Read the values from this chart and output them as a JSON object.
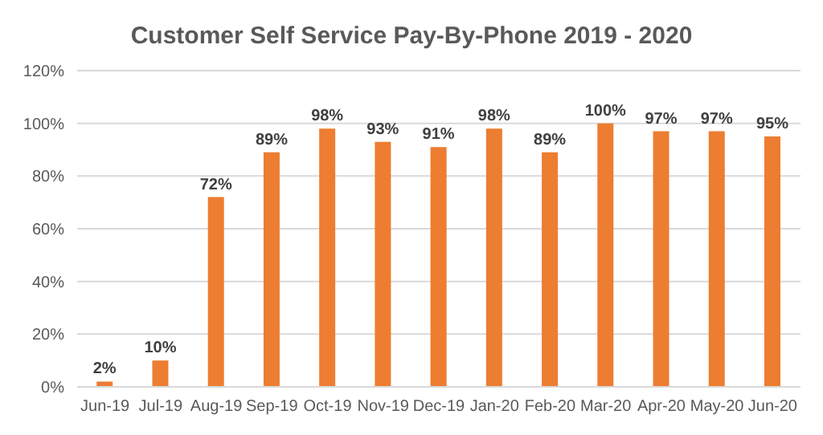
{
  "chart_data": {
    "type": "bar",
    "title": "Customer Self Service Pay-By-Phone 2019 - 2020",
    "categories": [
      "Jun-19",
      "Jul-19",
      "Aug-19",
      "Sep-19",
      "Oct-19",
      "Nov-19",
      "Dec-19",
      "Jan-20",
      "Feb-20",
      "Mar-20",
      "Apr-20",
      "May-20",
      "Jun-20"
    ],
    "values": [
      2,
      10,
      72,
      89,
      98,
      93,
      91,
      98,
      89,
      100,
      97,
      97,
      95
    ],
    "value_labels": [
      "2%",
      "10%",
      "72%",
      "89%",
      "98%",
      "93%",
      "91%",
      "98%",
      "89%",
      "100%",
      "97%",
      "97%",
      "95%"
    ],
    "color": "#ed7d31",
    "ylim": [
      0,
      120
    ],
    "yticks": [
      {
        "value": 0,
        "label": "0%"
      },
      {
        "value": 20,
        "label": "20%"
      },
      {
        "value": 40,
        "label": "40%"
      },
      {
        "value": 60,
        "label": "60%"
      },
      {
        "value": 80,
        "label": "80%"
      },
      {
        "value": 100,
        "label": "100%"
      },
      {
        "value": 120,
        "label": "120%"
      }
    ],
    "grid": "y"
  }
}
